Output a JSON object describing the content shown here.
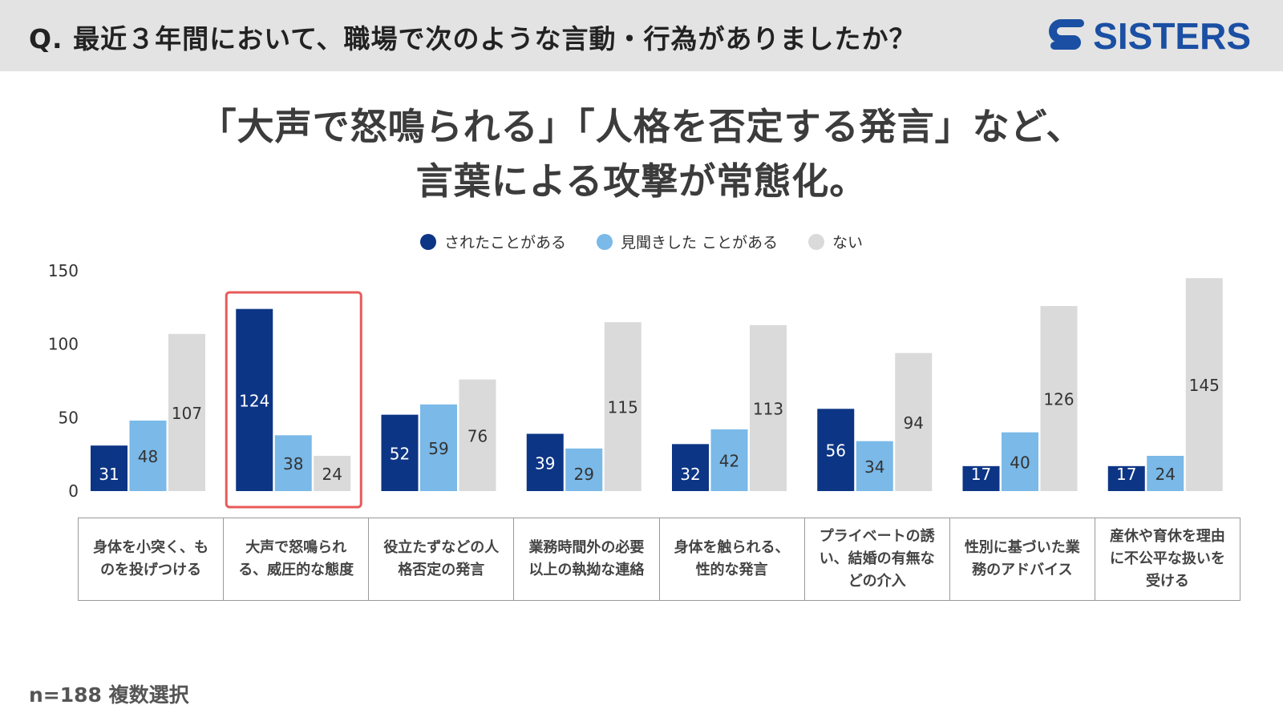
{
  "header": {
    "question": "Q. 最近３年間において、職場で次のような言動・行為がありましたか？",
    "logo_text": "SISTERS"
  },
  "headline": {
    "line1": "「大声で怒鳴られる」「人格を否定する発言」など、",
    "line2": "言葉による攻撃が常態化。"
  },
  "footnote": "n=188 複数選択",
  "colors": {
    "series1": "#0d3585",
    "series2": "#7ab9e8",
    "series3": "#dadada",
    "highlight": "#e85a5a",
    "logo": "#1a4fa3"
  },
  "chart_data": {
    "type": "bar",
    "categories": [
      "身体を小突く、ものを投げつける",
      "大声で怒鳴られる、威圧的な態度",
      "役立たずなどの人格否定の発言",
      "業務時間外の必要以上の執拗な連絡",
      "身体を触られる、性的な発言",
      "プライベートの誘い、結婚の有無などの介入",
      "性別に基づいた業務のアドバイス",
      "産休や育休を理由に不公平な扱いを受ける"
    ],
    "series": [
      {
        "name": "されたことがある",
        "values": [
          31,
          124,
          52,
          39,
          32,
          56,
          17,
          17
        ]
      },
      {
        "name": "見聞きした ことがある",
        "values": [
          48,
          38,
          59,
          29,
          42,
          34,
          40,
          24
        ]
      },
      {
        "name": "ない",
        "values": [
          107,
          24,
          76,
          115,
          113,
          94,
          126,
          145
        ]
      }
    ],
    "ylim": [
      0,
      150
    ],
    "yticks": [
      0,
      50,
      100,
      150
    ],
    "legend_position": "top-center",
    "grid": false,
    "highlighted_category": 1
  }
}
